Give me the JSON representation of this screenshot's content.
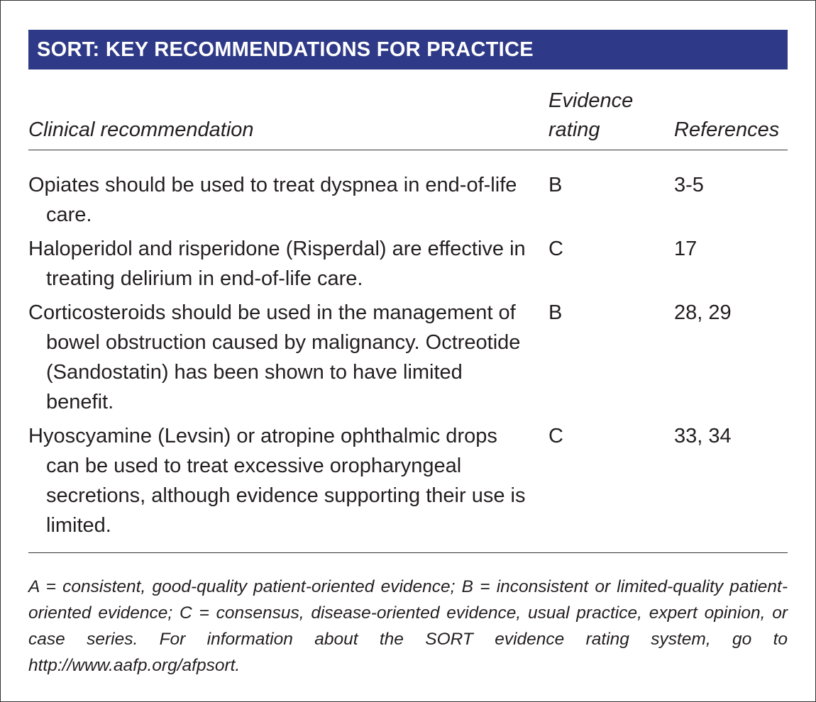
{
  "header": {
    "title": "SORT: KEY RECOMMENDATIONS FOR PRACTICE"
  },
  "table": {
    "columns": [
      "Clinical recommendation",
      "Evidence rating",
      "References"
    ],
    "rows": [
      [
        "Opiates should be used to treat dyspnea in end-of-life care.",
        "B",
        "3-5"
      ],
      [
        "Haloperidol and risperidone (Risperdal) are effective in treating delirium in end-of-life care.",
        "C",
        "17"
      ],
      [
        "Corticosteroids should be used in the management of bowel obstruction caused by malignancy. Octreotide (Sandostatin) has been shown to have limited benefit.",
        "B",
        "28, 29"
      ],
      [
        "Hyoscyamine (Levsin) or atropine ophthalmic drops can be used to treat excessive oropharyngeal secretions, although evidence supporting their use is limited.",
        "C",
        "33, 34"
      ]
    ]
  },
  "footnote": "A = consistent, good-quality patient-oriented evidence; B = inconsistent or limited-quality patient-oriented evidence; C = consensus, disease-oriented evidence, usual practice, expert opinion, or case series. For information about the SORT evidence rating system, go to http://www.aafp.org/afpsort."
}
